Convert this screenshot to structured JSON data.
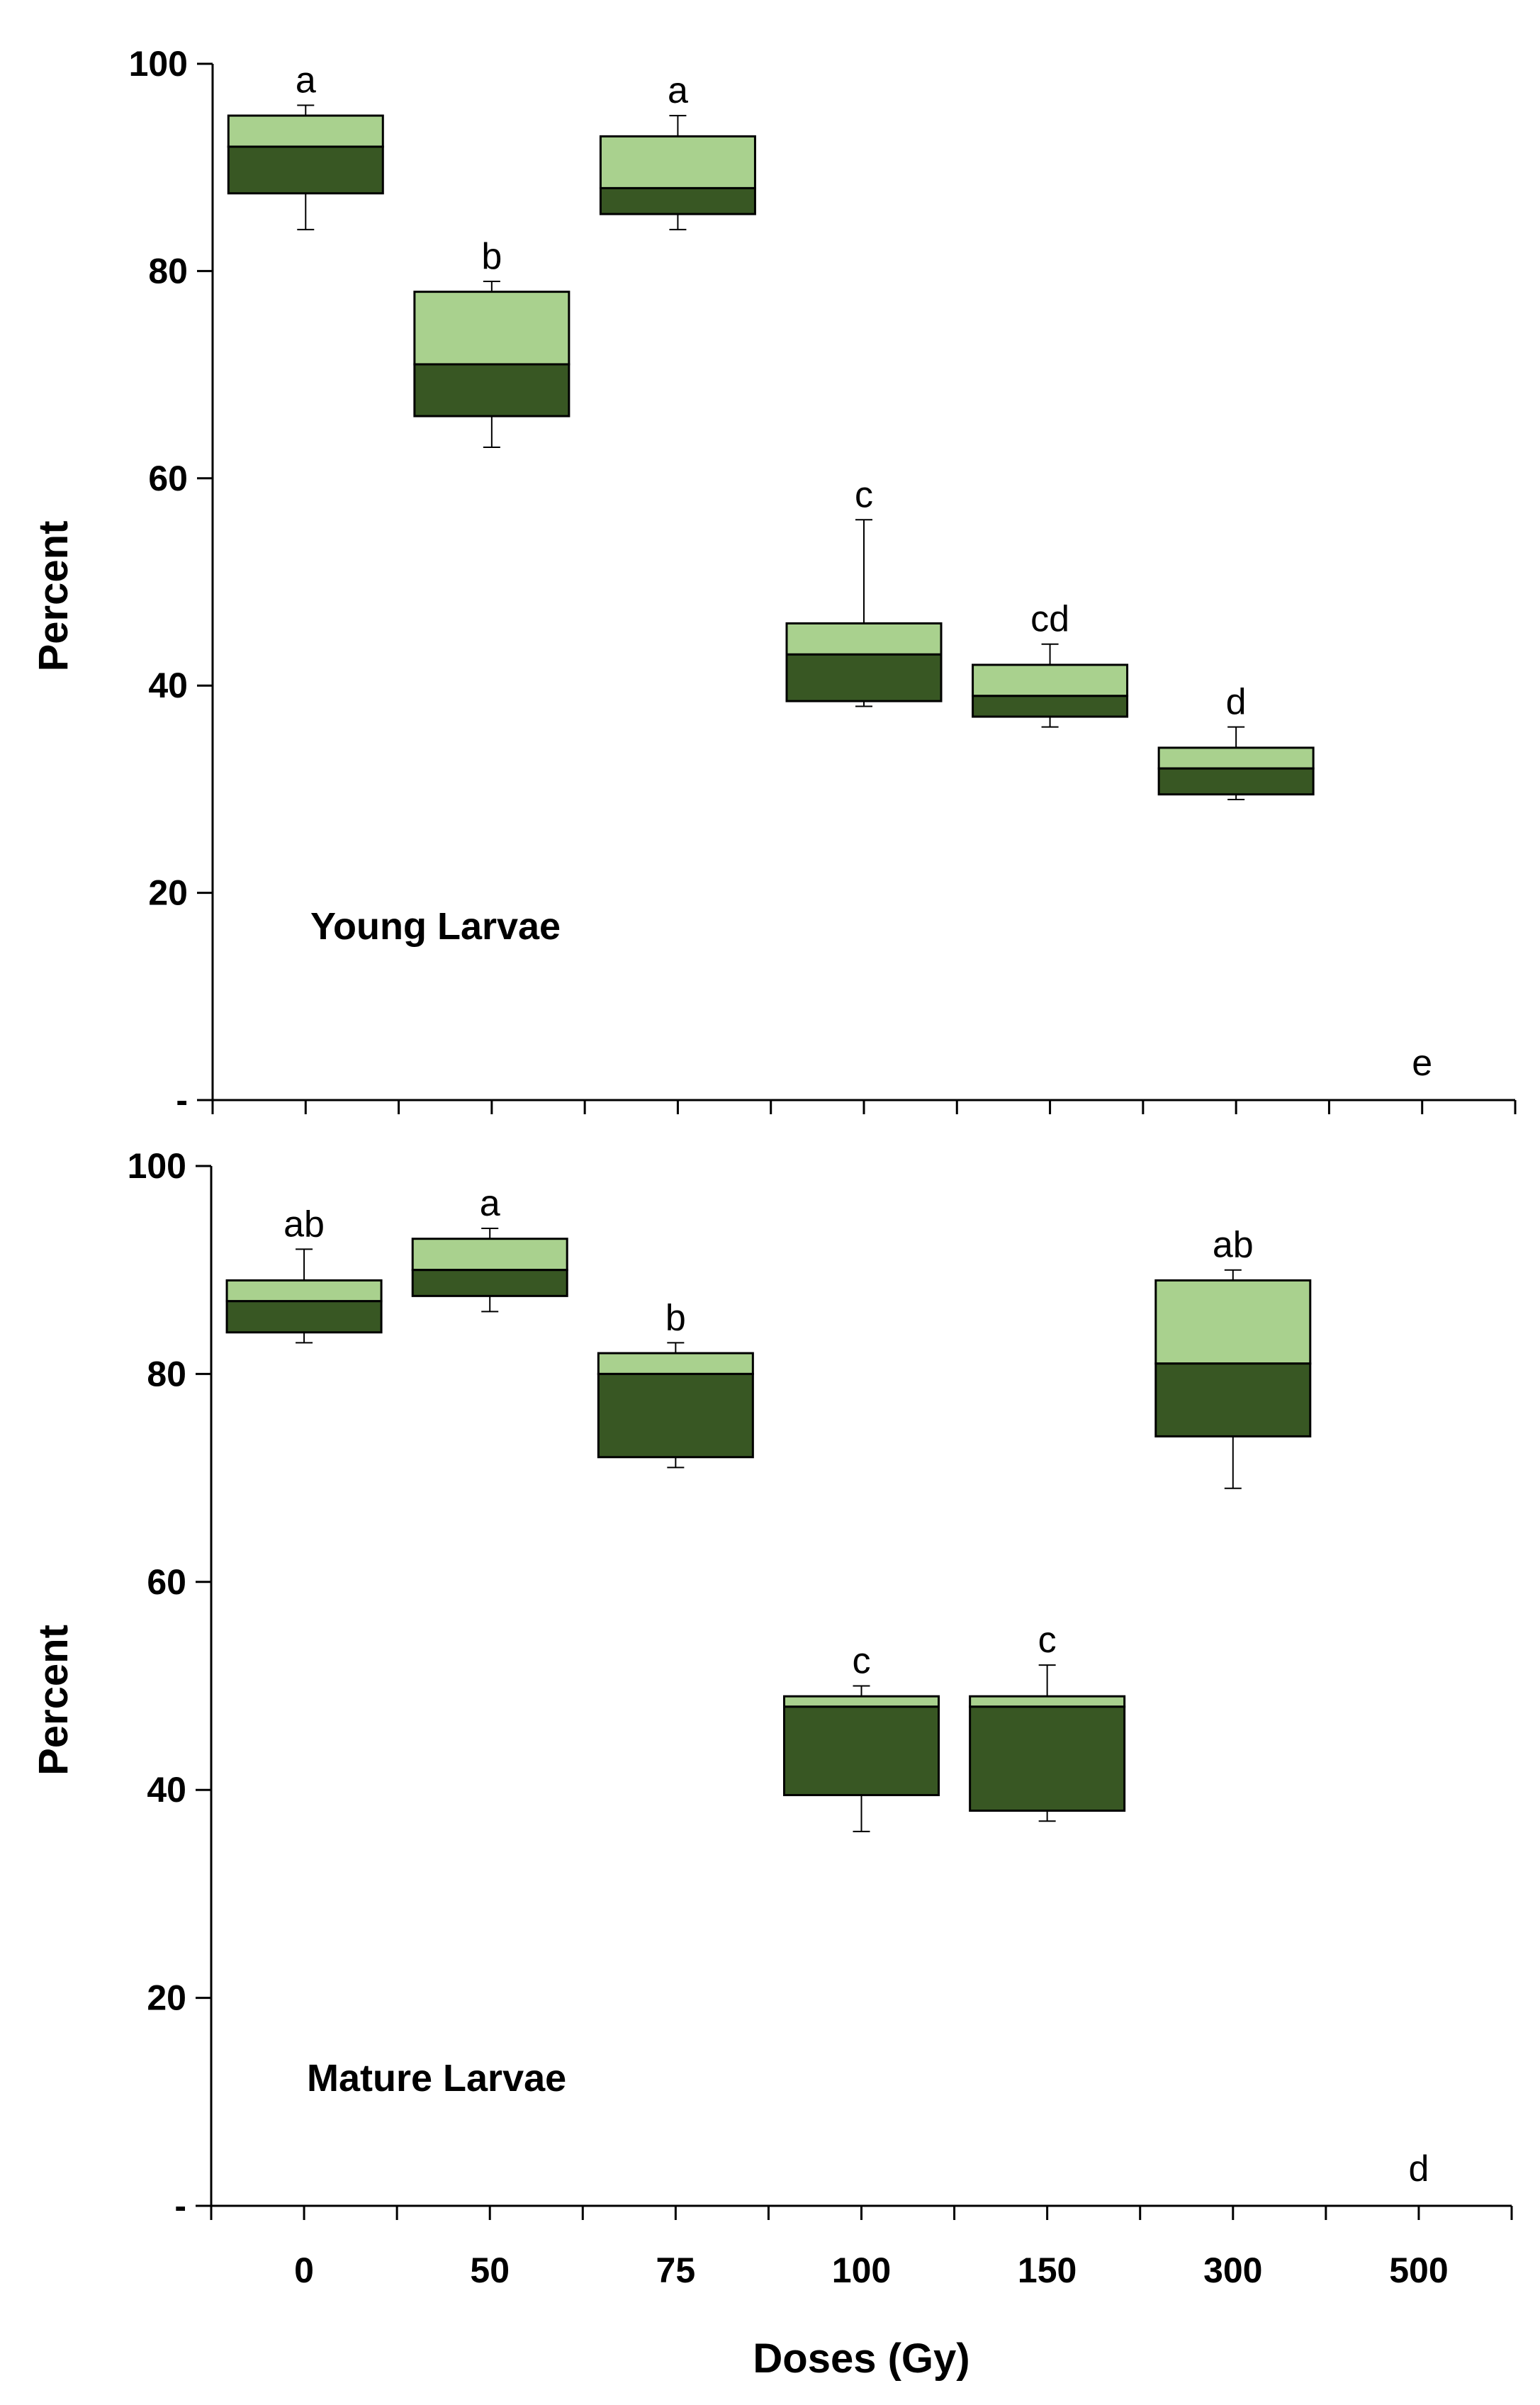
{
  "colors": {
    "upper_box": "#a9d18e",
    "lower_box": "#385723",
    "axis": "#000000"
  },
  "chart_data": [
    {
      "type": "box",
      "panel_label": "Young Larvae",
      "ylabel": "Percent",
      "xlabel": "",
      "ylim": [
        0,
        100
      ],
      "yticks": [
        0,
        20,
        40,
        60,
        80,
        100
      ],
      "ytick_labels": [
        "-",
        "20",
        "40",
        "60",
        "80",
        "100"
      ],
      "categories": [
        "0",
        "50",
        "75",
        "100",
        "150",
        "300",
        "500"
      ],
      "show_category_labels": false,
      "series": [
        {
          "category": "0",
          "min": 84,
          "q1": 87.5,
          "median": 92,
          "q3": 95,
          "max": 96,
          "letter": "a"
        },
        {
          "category": "50",
          "min": 63,
          "q1": 66,
          "median": 71,
          "q3": 78,
          "max": 79,
          "letter": "b"
        },
        {
          "category": "75",
          "min": 84,
          "q1": 85.5,
          "median": 88,
          "q3": 93,
          "max": 95,
          "letter": "a"
        },
        {
          "category": "100",
          "min": 38,
          "q1": 38.5,
          "median": 43,
          "q3": 46,
          "max": 56,
          "letter": "c"
        },
        {
          "category": "150",
          "min": 36,
          "q1": 37,
          "median": 39,
          "q3": 42,
          "max": 44,
          "letter": "cd"
        },
        {
          "category": "300",
          "min": 29,
          "q1": 29.5,
          "median": 32,
          "q3": 34,
          "max": 36,
          "letter": "d"
        },
        {
          "category": "500",
          "min": null,
          "q1": null,
          "median": null,
          "q3": null,
          "max": null,
          "letter": "e"
        }
      ]
    },
    {
      "type": "box",
      "panel_label": "Mature Larvae",
      "ylabel": "Percent",
      "xlabel": "Doses (Gy)",
      "ylim": [
        0,
        100
      ],
      "yticks": [
        0,
        20,
        40,
        60,
        80,
        100
      ],
      "ytick_labels": [
        "-",
        "20",
        "40",
        "60",
        "80",
        "100"
      ],
      "categories": [
        "0",
        "50",
        "75",
        "100",
        "150",
        "300",
        "500"
      ],
      "show_category_labels": true,
      "series": [
        {
          "category": "0",
          "min": 83,
          "q1": 84,
          "median": 87,
          "q3": 89,
          "max": 92,
          "letter": "ab"
        },
        {
          "category": "50",
          "min": 86,
          "q1": 87.5,
          "median": 90,
          "q3": 93,
          "max": 94,
          "letter": "a"
        },
        {
          "category": "75",
          "min": 71,
          "q1": 72,
          "median": 80,
          "q3": 82,
          "max": 83,
          "letter": "b"
        },
        {
          "category": "100",
          "min": 36,
          "q1": 39.5,
          "median": 48,
          "q3": 49,
          "max": 50,
          "letter": "c"
        },
        {
          "category": "150",
          "min": 37,
          "q1": 38,
          "median": 48,
          "q3": 49,
          "max": 52,
          "letter": "c"
        },
        {
          "category": "300",
          "min": 69,
          "q1": 74,
          "median": 81,
          "q3": 89,
          "max": 90,
          "letter": "ab"
        },
        {
          "category": "500",
          "min": null,
          "q1": null,
          "median": null,
          "q3": null,
          "max": null,
          "letter": "d"
        }
      ]
    }
  ]
}
